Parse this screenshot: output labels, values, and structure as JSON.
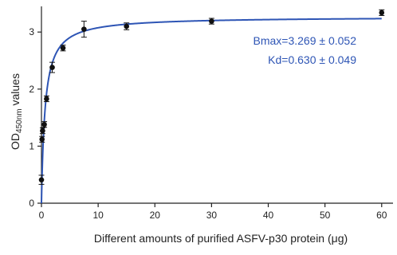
{
  "chart_data": {
    "type": "scatter",
    "title": "",
    "xlabel": "Different amounts of purified ASFV-p30 protein (μg)",
    "ylabel": {
      "prefix": "OD",
      "subscript": "450nm",
      "suffix": " values"
    },
    "xlim": [
      0,
      62
    ],
    "ylim": [
      0,
      3.45
    ],
    "xticks": [
      0,
      10,
      20,
      30,
      40,
      50,
      60
    ],
    "yticks": [
      0,
      1,
      2,
      3
    ],
    "grid": false,
    "legend": "none",
    "series": [
      {
        "x": [
          0,
          0.1,
          0.2,
          0.5,
          0.9,
          1.9,
          3.8,
          7.5,
          15,
          30,
          60
        ],
        "y": [
          0.41,
          1.12,
          1.27,
          1.38,
          1.83,
          2.38,
          2.72,
          3.05,
          3.1,
          3.19,
          3.34
        ],
        "error": [
          0.08,
          0.05,
          0.05,
          0.05,
          0.05,
          0.09,
          0.05,
          0.14,
          0.06,
          0.05,
          0.05
        ]
      }
    ],
    "fit": {
      "model": "one-site specific binding",
      "bmax": 3.269,
      "kd": 0.63,
      "bmax_label": "Bmax=3.269 ± 0.052",
      "kd_label": "Kd=0.630 ± 0.049"
    },
    "colors": {
      "fit_line": "#2e55b5",
      "annotation": "#2e55b5",
      "points": "#111111",
      "axis": "#222222"
    }
  }
}
